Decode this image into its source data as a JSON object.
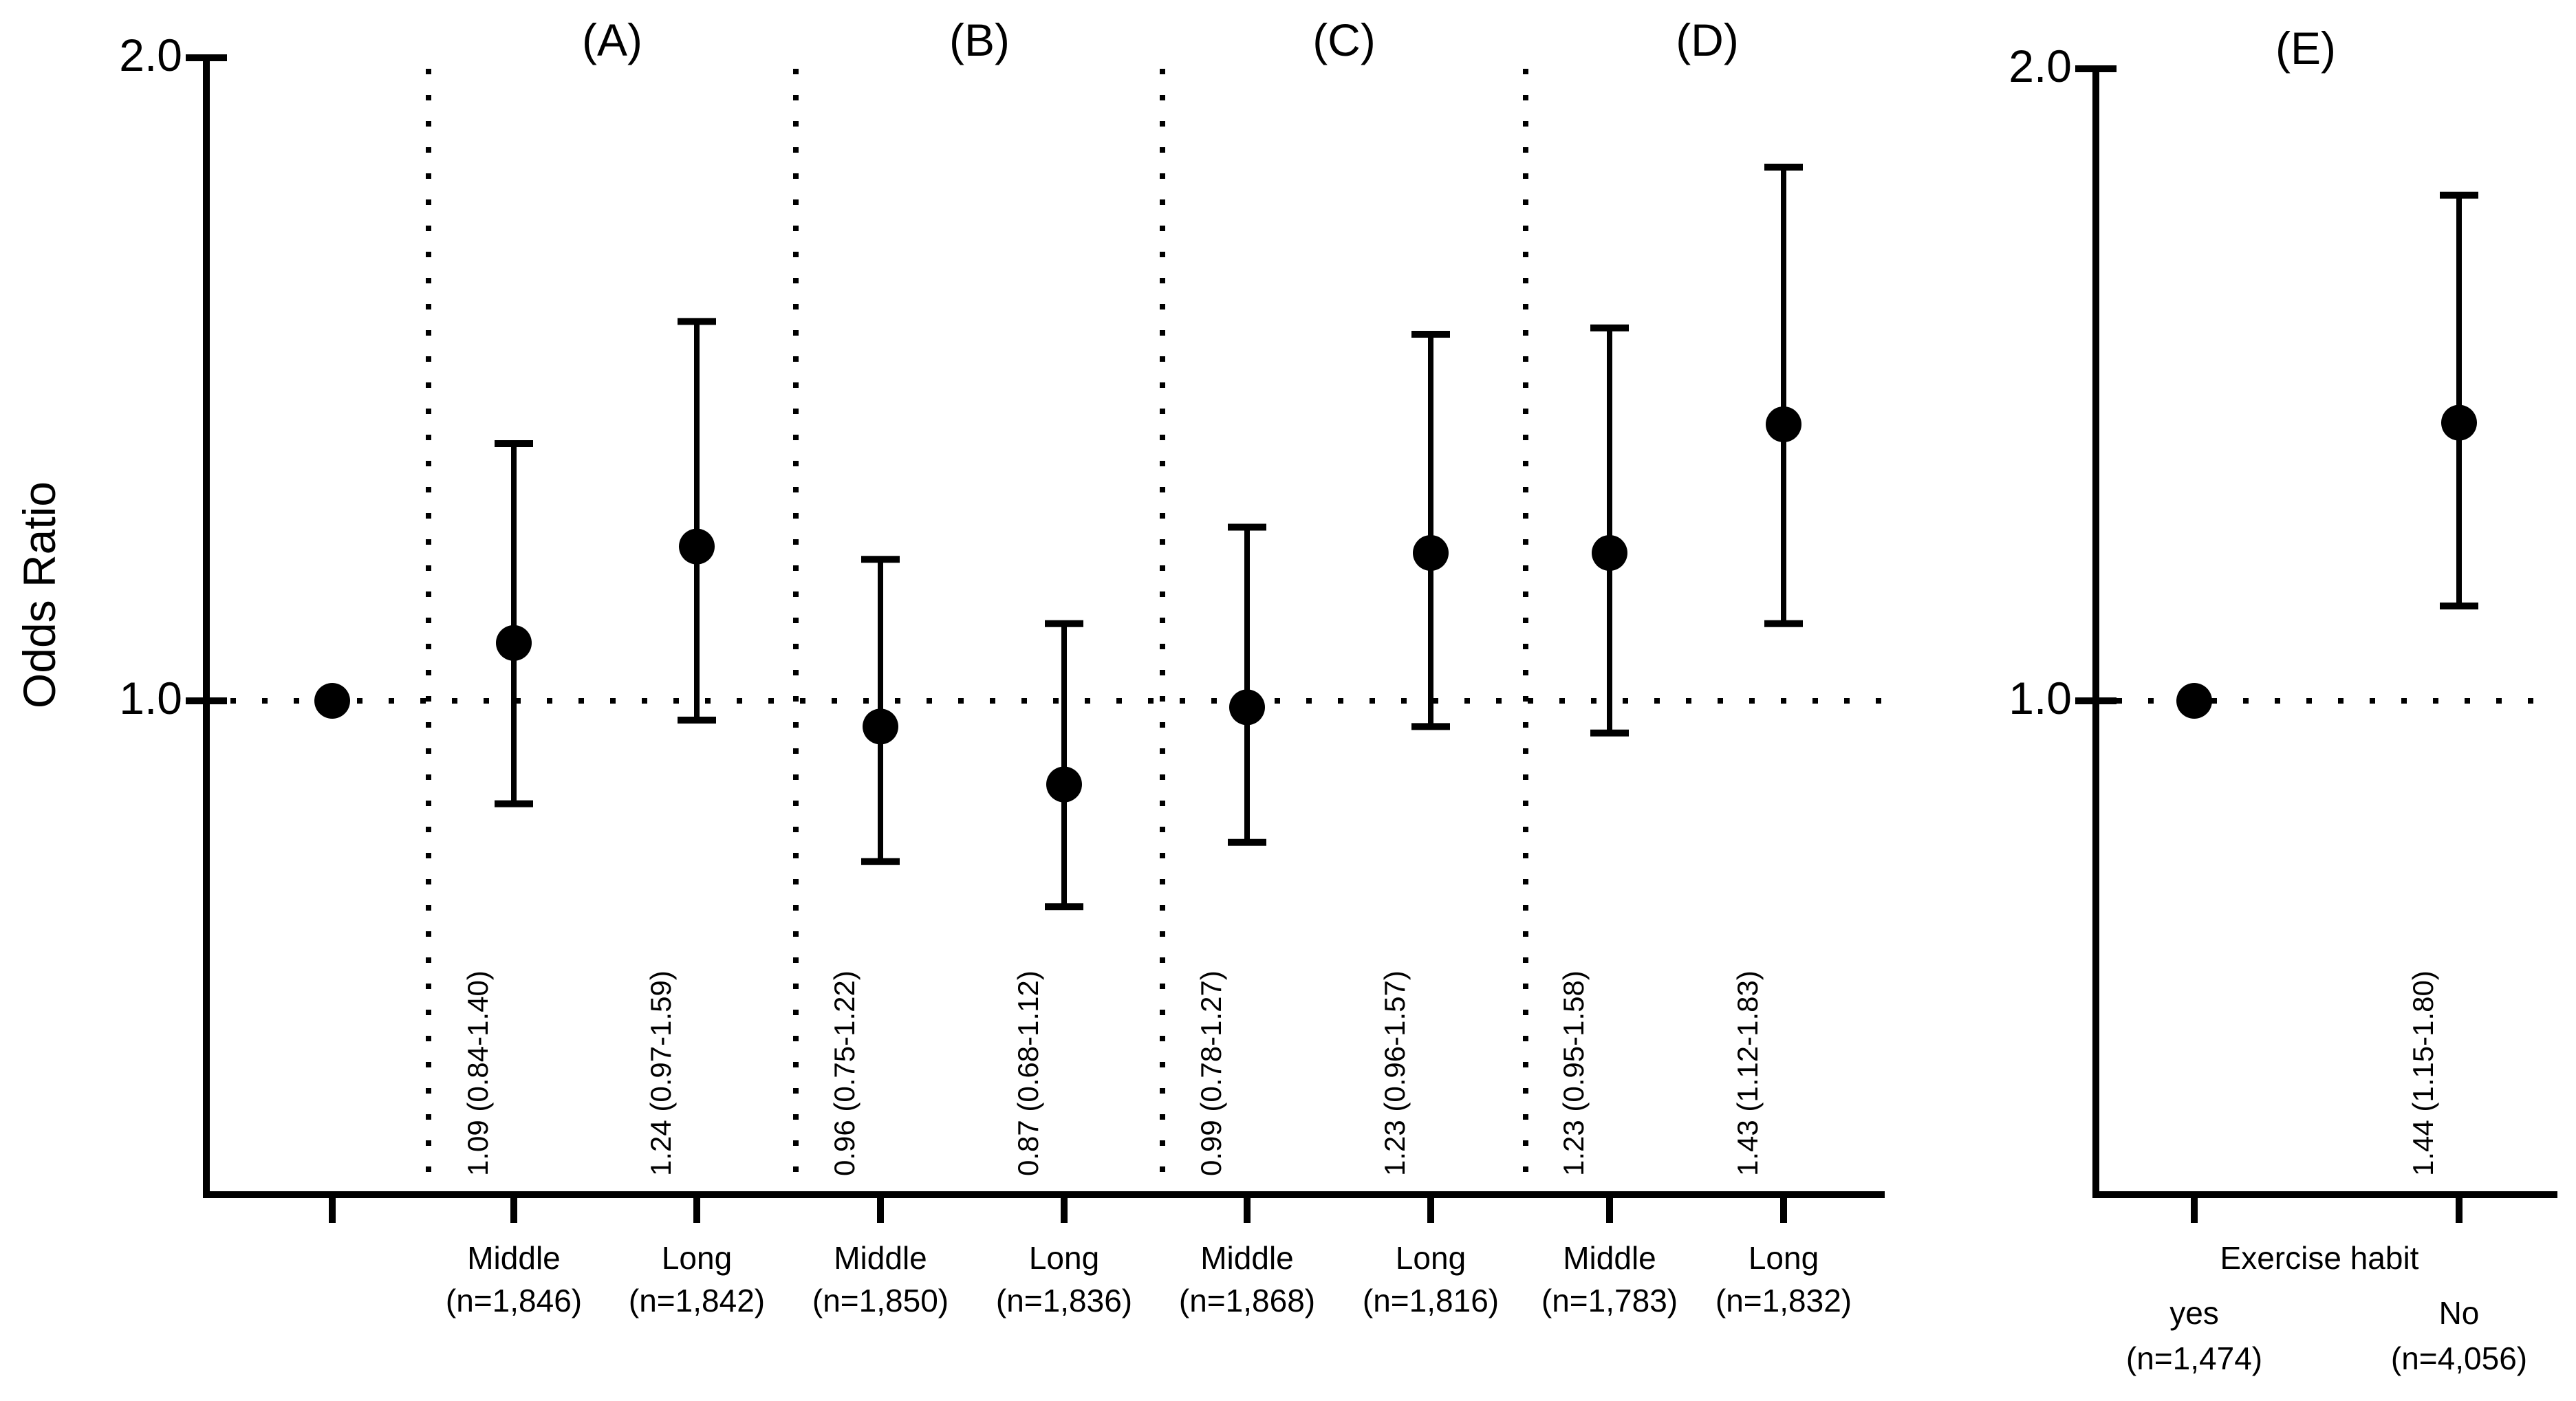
{
  "figure": {
    "ylabel": "Odds Ratio",
    "ytick_top": "2.0",
    "ytick_bottom": "1.0",
    "ink_color": "#000000",
    "background_color": "#ffffff"
  },
  "chart_data": {
    "type": "scatter",
    "subtype": "forest-plot-odds-ratios",
    "title": "",
    "xlabel": "",
    "ylabel": "Odds Ratio",
    "yticks": [
      1.0,
      2.0
    ],
    "ytick_labels": [
      "1.0",
      "2.0"
    ],
    "ylim": [
      0.23,
      2.0
    ],
    "grid": false,
    "reference_line": 1.0,
    "reference_point": {
      "or": 1.0
    },
    "panels": [
      {
        "label": "(A)",
        "series": [
          {
            "category": "Middle",
            "n_label": "(n=1,846)",
            "or": 1.09,
            "ci_low": 0.84,
            "ci_high": 1.4,
            "annotation": "1.09 (0.84-1.40)"
          },
          {
            "category": "Long",
            "n_label": "(n=1,842)",
            "or": 1.24,
            "ci_low": 0.97,
            "ci_high": 1.59,
            "annotation": "1.24 (0.97-1.59)"
          }
        ]
      },
      {
        "label": "(B)",
        "series": [
          {
            "category": "Middle",
            "n_label": "(n=1,850)",
            "or": 0.96,
            "ci_low": 0.75,
            "ci_high": 1.22,
            "annotation": "0.96 (0.75-1.22)"
          },
          {
            "category": "Long",
            "n_label": "(n=1,836)",
            "or": 0.87,
            "ci_low": 0.68,
            "ci_high": 1.12,
            "annotation": "0.87 (0.68-1.12)"
          }
        ]
      },
      {
        "label": "(C)",
        "series": [
          {
            "category": "Middle",
            "n_label": "(n=1,868)",
            "or": 0.99,
            "ci_low": 0.78,
            "ci_high": 1.27,
            "annotation": "0.99 (0.78-1.27)"
          },
          {
            "category": "Long",
            "n_label": "(n=1,816)",
            "or": 1.23,
            "ci_low": 0.96,
            "ci_high": 1.57,
            "annotation": "1.23 (0.96-1.57)"
          }
        ]
      },
      {
        "label": "(D)",
        "series": [
          {
            "category": "Middle",
            "n_label": "(n=1,783)",
            "or": 1.23,
            "ci_low": 0.95,
            "ci_high": 1.58,
            "annotation": "1.23 (0.95-1.58)"
          },
          {
            "category": "Long",
            "n_label": "(n=1,832)",
            "or": 1.43,
            "ci_low": 1.12,
            "ci_high": 1.83,
            "annotation": "1.43 (1.12-1.83)"
          }
        ]
      }
    ],
    "panel_e": {
      "label": "(E)",
      "xlabel": "Exercise habit",
      "series": [
        {
          "category": "yes",
          "n_label": "(n=1,474)",
          "or": 1.0,
          "reference": true
        },
        {
          "category": "No",
          "n_label": "(n=4,056)",
          "or": 1.44,
          "ci_low": 1.15,
          "ci_high": 1.8,
          "annotation": "1.44 (1.15-1.80)"
        }
      ]
    }
  }
}
